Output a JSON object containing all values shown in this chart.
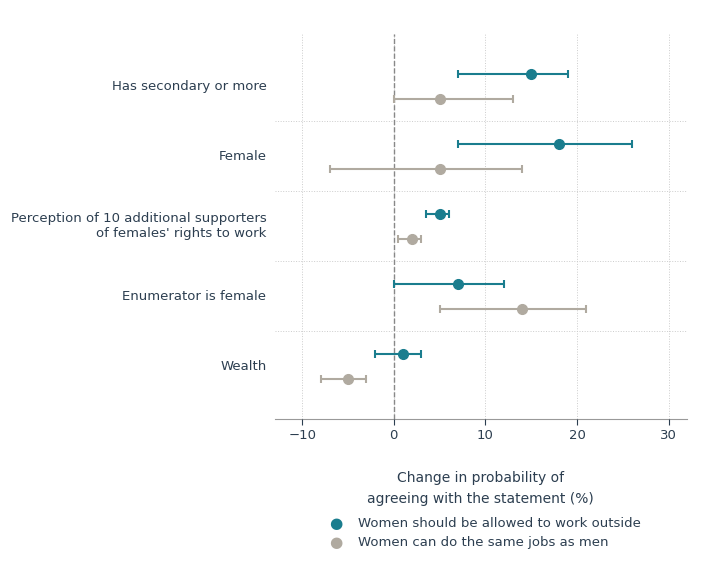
{
  "categories": [
    "Has secondary or more",
    "Female",
    "Perception of 10 additional supporters\nof females' rights to work",
    "Enumerator is female",
    "Wealth"
  ],
  "teal": {
    "centers": [
      15,
      18,
      5,
      7,
      1
    ],
    "ci_low": [
      7,
      7,
      3.5,
      0,
      -2
    ],
    "ci_high": [
      19,
      26,
      6,
      12,
      3
    ]
  },
  "gray": {
    "centers": [
      5,
      5,
      2,
      14,
      -5
    ],
    "ci_low": [
      0,
      -7,
      0.5,
      5,
      -8
    ],
    "ci_high": [
      13,
      14,
      3,
      21,
      -3
    ]
  },
  "teal_color": "#1a7d8e",
  "gray_color": "#b0aaa0",
  "xlabel_line1": "Change in probability of",
  "xlabel_line2": "agreeing with the statement (%)",
  "xlim": [
    -13,
    32
  ],
  "xticks": [
    -10,
    0,
    10,
    20,
    30
  ],
  "legend_teal": "Women should be allowed to work outside",
  "legend_gray": "Women can do the same jobs as men",
  "voffset": 0.18,
  "markersize": 7,
  "elinewidth": 1.5,
  "capsize": 3,
  "capthick": 1.5
}
